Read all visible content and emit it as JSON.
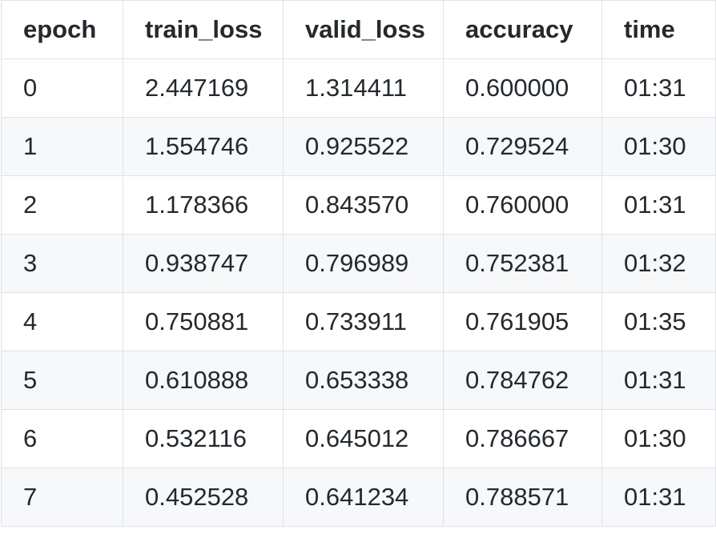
{
  "chart_data": {
    "type": "table",
    "columns": [
      "epoch",
      "train_loss",
      "valid_loss",
      "accuracy",
      "time"
    ],
    "rows": [
      [
        "0",
        "2.447169",
        "1.314411",
        "0.600000",
        "01:31"
      ],
      [
        "1",
        "1.554746",
        "0.925522",
        "0.729524",
        "01:30"
      ],
      [
        "2",
        "1.178366",
        "0.843570",
        "0.760000",
        "01:31"
      ],
      [
        "3",
        "0.938747",
        "0.796989",
        "0.752381",
        "01:32"
      ],
      [
        "4",
        "0.750881",
        "0.733911",
        "0.761905",
        "01:35"
      ],
      [
        "5",
        "0.610888",
        "0.653338",
        "0.784762",
        "01:31"
      ],
      [
        "6",
        "0.532116",
        "0.645012",
        "0.786667",
        "01:30"
      ],
      [
        "7",
        "0.452528",
        "0.641234",
        "0.788571",
        "01:31"
      ]
    ]
  },
  "colors": {
    "border": "#dfe2e5",
    "stripe": "#f6f8fa",
    "text": "#24292e"
  }
}
